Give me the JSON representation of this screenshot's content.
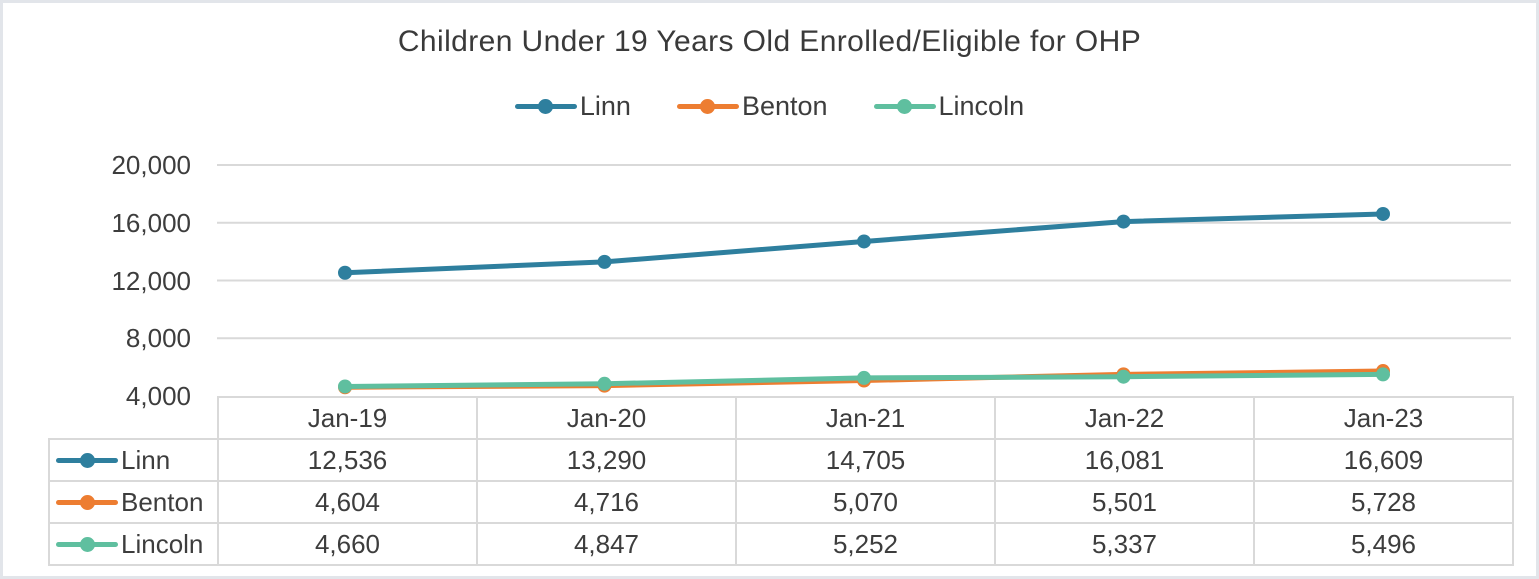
{
  "chart": {
    "title": "Children Under 19 Years Old Enrolled/Eligible for OHP"
  },
  "chart_data": {
    "type": "line",
    "title": "Children Under 19 Years Old Enrolled/Eligible for OHP",
    "xlabel": "",
    "ylabel": "",
    "categories": [
      "Jan-19",
      "Jan-20",
      "Jan-21",
      "Jan-22",
      "Jan-23"
    ],
    "series": [
      {
        "name": "Linn",
        "color": "#2E7F9E",
        "values": [
          12536,
          13290,
          14705,
          16081,
          16609
        ]
      },
      {
        "name": "Benton",
        "color": "#ED7D31",
        "values": [
          4604,
          4716,
          5070,
          5501,
          5728
        ]
      },
      {
        "name": "Lincoln",
        "color": "#5FBF9F",
        "values": [
          4660,
          4847,
          5252,
          5337,
          5496
        ]
      }
    ],
    "y_axis": {
      "min": 4000,
      "max": 20000,
      "ticks": [
        4000,
        8000,
        12000,
        16000,
        20000
      ],
      "tick_labels": [
        "4,000",
        "8,000",
        "12,000",
        "16,000",
        "20,000"
      ]
    },
    "ylim": [
      4000,
      20000
    ],
    "legend_position": "top",
    "grid": true,
    "data_table": true
  },
  "table": {
    "col_headers": [
      "Jan-19",
      "Jan-20",
      "Jan-21",
      "Jan-22",
      "Jan-23"
    ],
    "rows": [
      {
        "label": "Linn",
        "values": [
          "12,536",
          "13,290",
          "14,705",
          "16,081",
          "16,609"
        ]
      },
      {
        "label": "Benton",
        "values": [
          "4,604",
          "4,716",
          "5,070",
          "5,501",
          "5,728"
        ]
      },
      {
        "label": "Lincoln",
        "values": [
          "4,660",
          "4,847",
          "5,252",
          "5,337",
          "5,496"
        ]
      }
    ]
  },
  "colors": {
    "gridline": "#D9D9D9",
    "table_border": "#D9D9D9",
    "text": "#3D3D3D"
  }
}
